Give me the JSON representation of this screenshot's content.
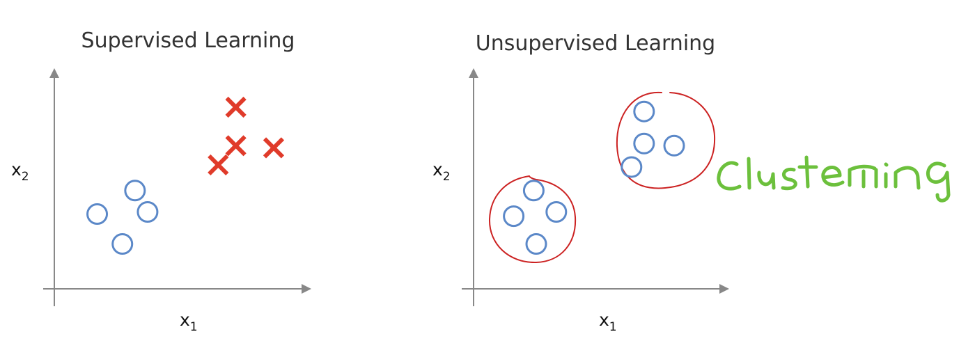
{
  "colors": {
    "axis": "#888888",
    "circle_marker": "#5b88c8",
    "x_marker": "#e03b2a",
    "cluster_outline": "#cc2222",
    "handwriting": "#6cc03c"
  },
  "annotation": {
    "text": "Clustering"
  },
  "chart_data": [
    {
      "type": "scatter",
      "title": "Supervised Learning",
      "xlabel": "x",
      "xlabel_sub": "1",
      "ylabel": "x",
      "ylabel_sub": "2",
      "xlim": [
        0,
        10
      ],
      "ylim": [
        0,
        10
      ],
      "grid": false,
      "series": [
        {
          "marker": "circle",
          "points": [
            [
              3.2,
              4.6
            ],
            [
              1.7,
              3.5
            ],
            [
              3.7,
              3.6
            ],
            [
              2.7,
              2.1
            ]
          ]
        },
        {
          "marker": "x",
          "points": [
            [
              7.2,
              8.5
            ],
            [
              7.2,
              6.7
            ],
            [
              8.7,
              6.6
            ],
            [
              6.5,
              5.8
            ]
          ]
        }
      ]
    },
    {
      "type": "scatter",
      "title": "Unsupervised Learning",
      "xlabel": "x",
      "xlabel_sub": "1",
      "ylabel": "x",
      "ylabel_sub": "2",
      "xlim": [
        0,
        10
      ],
      "ylim": [
        0,
        10
      ],
      "grid": false,
      "series": [
        {
          "marker": "circle",
          "points": [
            [
              2.4,
              4.6
            ],
            [
              1.6,
              3.4
            ],
            [
              3.3,
              3.6
            ],
            [
              2.5,
              2.1
            ],
            [
              6.8,
              8.3
            ],
            [
              6.8,
              6.8
            ],
            [
              8.0,
              6.7
            ],
            [
              6.3,
              5.7
            ]
          ]
        }
      ],
      "clusters": [
        {
          "outline": "hand-drawn",
          "members": [
            0,
            1,
            2,
            3
          ]
        },
        {
          "outline": "hand-drawn",
          "members": [
            4,
            5,
            6,
            7
          ]
        }
      ]
    }
  ]
}
